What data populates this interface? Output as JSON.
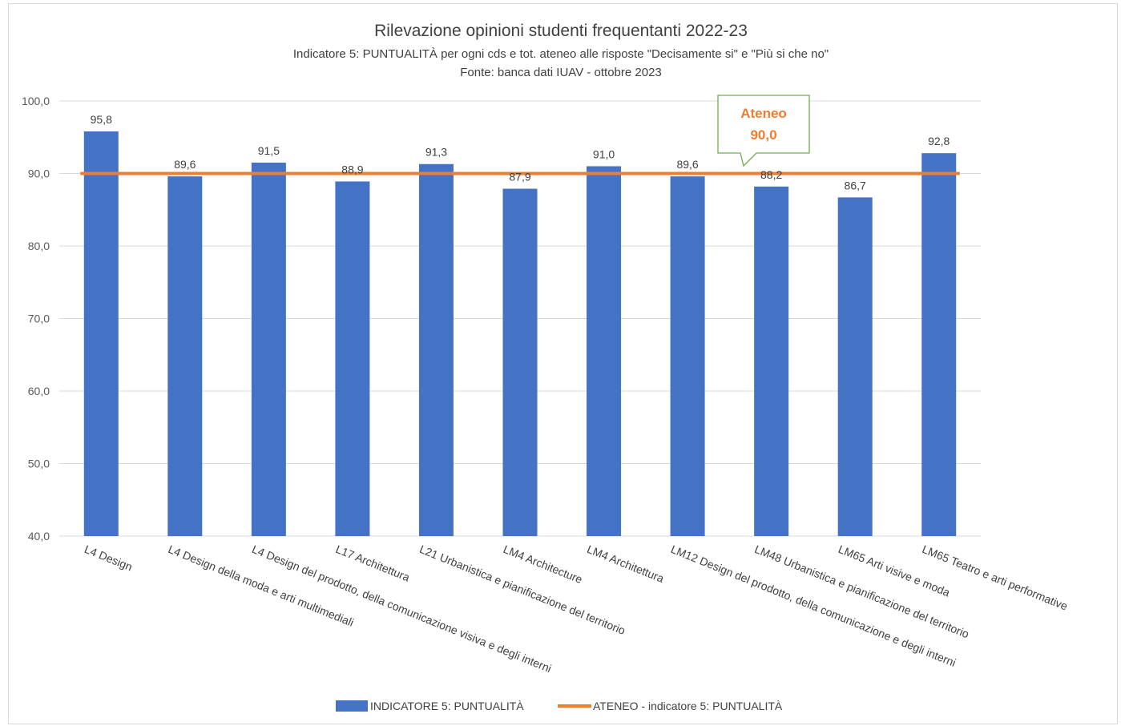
{
  "chart_data": {
    "type": "bar",
    "title": "Rilevazione opinioni studenti frequentanti 2022-23",
    "subtitle": "Indicatore 5: PUNTUALITÀ per ogni cds e tot. ateneo alle risposte \"Decisamente si\" e \"Più si che no\"",
    "source": "Fonte: banca dati IUAV - ottobre 2023",
    "categories": [
      "L4 Design",
      "L4 Design della moda e arti multimediali",
      "L4 Design del prodotto, della comunicazione visiva e degli interni",
      "L17 Architettura",
      "L21 Urbanistica e pianificazione del territorio",
      "LM4 Architecture",
      "LM4 Architettura",
      "LM12 Design del prodotto, della comunicazione e degli interni",
      "LM48 Urbanistica e pianificazione del territorio",
      "LM65 Arti visive e moda",
      "LM65 Teatro e arti performative"
    ],
    "series": [
      {
        "name": "INDICATORE 5: PUNTUALITÀ",
        "type": "bar",
        "color": "#4472C4",
        "values": [
          95.8,
          89.6,
          91.5,
          88.9,
          91.3,
          87.9,
          91.0,
          89.6,
          88.2,
          86.7,
          92.8
        ],
        "labels": [
          "95,8",
          "89,6",
          "91,5",
          "88,9",
          "91,3",
          "87,9",
          "91,0",
          "89,6",
          "88,2",
          "86,7",
          "92,8"
        ]
      },
      {
        "name": "ATENEO - indicatore 5: PUNTUALITÀ",
        "type": "line",
        "color": "#ED7D31",
        "value": 90.0
      }
    ],
    "ylim": [
      40,
      100
    ],
    "yticks": [
      40,
      50,
      60,
      70,
      80,
      90,
      100
    ],
    "ytick_labels": [
      "40,0",
      "50,0",
      "60,0",
      "70,0",
      "80,0",
      "90,0",
      "100,0"
    ],
    "grid": true,
    "legend_position": "bottom",
    "annotation": {
      "line1": "Ateneo",
      "line2": "90,0",
      "color": "#ED7D31",
      "border": "#70AD47"
    }
  }
}
